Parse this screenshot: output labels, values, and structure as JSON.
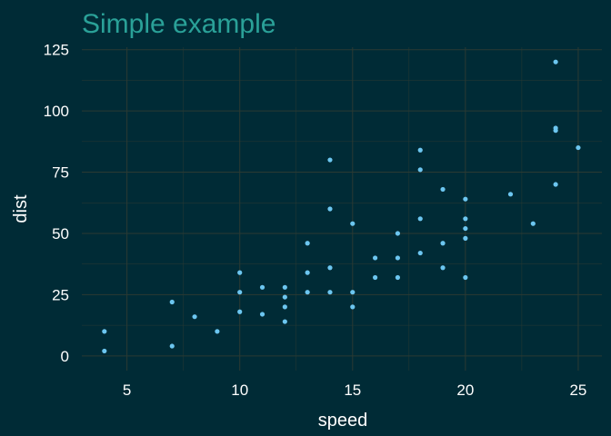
{
  "chart_data": {
    "type": "scatter",
    "title": "Simple example",
    "xlabel": "speed",
    "ylabel": "dist",
    "xlim": [
      3.0,
      26.05
    ],
    "ylim": [
      -6.0,
      126.0
    ],
    "xticks": [
      5,
      10,
      15,
      20,
      25
    ],
    "yticks": [
      0,
      25,
      50,
      75,
      100,
      125
    ],
    "grid": true,
    "legend": "none",
    "colors": {
      "background": "#002b36",
      "title": "#2aa198",
      "text": "#ffffff",
      "grid": "#2b3a33",
      "point": "#6cc6f0"
    },
    "points": [
      {
        "x": 4,
        "y": 2
      },
      {
        "x": 4,
        "y": 10
      },
      {
        "x": 7,
        "y": 4
      },
      {
        "x": 7,
        "y": 22
      },
      {
        "x": 8,
        "y": 16
      },
      {
        "x": 9,
        "y": 10
      },
      {
        "x": 10,
        "y": 18
      },
      {
        "x": 10,
        "y": 26
      },
      {
        "x": 10,
        "y": 34
      },
      {
        "x": 11,
        "y": 17
      },
      {
        "x": 11,
        "y": 28
      },
      {
        "x": 12,
        "y": 14
      },
      {
        "x": 12,
        "y": 20
      },
      {
        "x": 12,
        "y": 24
      },
      {
        "x": 12,
        "y": 28
      },
      {
        "x": 13,
        "y": 26
      },
      {
        "x": 13,
        "y": 34
      },
      {
        "x": 13,
        "y": 46
      },
      {
        "x": 14,
        "y": 26
      },
      {
        "x": 14,
        "y": 36
      },
      {
        "x": 14,
        "y": 60
      },
      {
        "x": 14,
        "y": 80
      },
      {
        "x": 15,
        "y": 20
      },
      {
        "x": 15,
        "y": 26
      },
      {
        "x": 15,
        "y": 54
      },
      {
        "x": 16,
        "y": 32
      },
      {
        "x": 16,
        "y": 40
      },
      {
        "x": 17,
        "y": 32
      },
      {
        "x": 17,
        "y": 40
      },
      {
        "x": 17,
        "y": 50
      },
      {
        "x": 18,
        "y": 42
      },
      {
        "x": 18,
        "y": 56
      },
      {
        "x": 18,
        "y": 76
      },
      {
        "x": 18,
        "y": 84
      },
      {
        "x": 19,
        "y": 36
      },
      {
        "x": 19,
        "y": 46
      },
      {
        "x": 19,
        "y": 68
      },
      {
        "x": 20,
        "y": 32
      },
      {
        "x": 20,
        "y": 48
      },
      {
        "x": 20,
        "y": 52
      },
      {
        "x": 20,
        "y": 56
      },
      {
        "x": 20,
        "y": 64
      },
      {
        "x": 22,
        "y": 66
      },
      {
        "x": 23,
        "y": 54
      },
      {
        "x": 24,
        "y": 70
      },
      {
        "x": 24,
        "y": 92
      },
      {
        "x": 24,
        "y": 93
      },
      {
        "x": 24,
        "y": 120
      },
      {
        "x": 25,
        "y": 85
      }
    ]
  }
}
